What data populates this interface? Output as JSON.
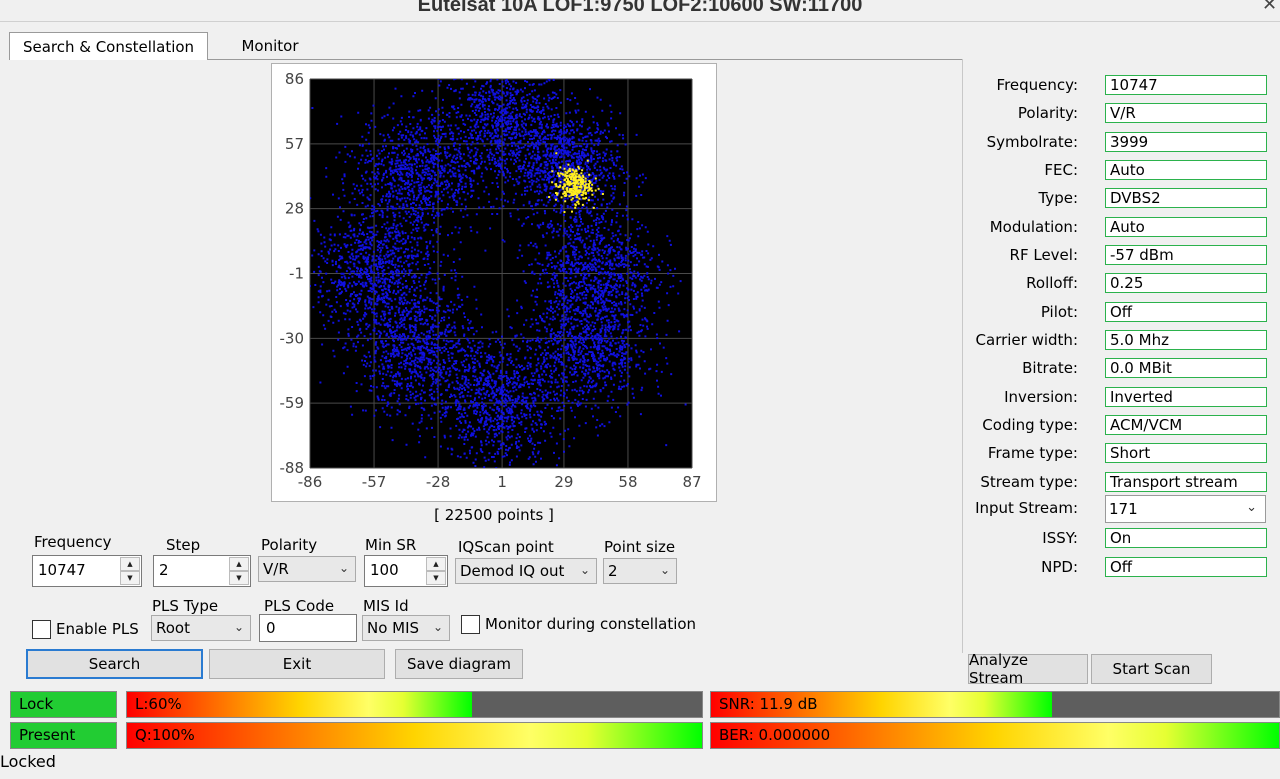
{
  "window": {
    "title": "Eutelsat 10A LOF1:9750 LOF2:10600 SW:11700",
    "close_glyph": "✕"
  },
  "tabs": [
    {
      "label": "Search & Constellation",
      "active": true
    },
    {
      "label": "Monitor",
      "active": false
    }
  ],
  "plot": {
    "x_ticks": [
      "-86",
      "-57",
      "-28",
      "1",
      "29",
      "58",
      "87"
    ],
    "y_ticks": [
      "86",
      "57",
      "28",
      "-1",
      "-30",
      "-59",
      "-88"
    ],
    "points_label": "[ 22500 points ]",
    "colors": {
      "background": "#000000",
      "points": "#1010e0",
      "highlight": "#ffee22",
      "grid": "#4a4a4a"
    }
  },
  "chart_data": {
    "type": "scatter",
    "x_ticks": [
      -86,
      -57,
      -28,
      1,
      29,
      58,
      87
    ],
    "y_ticks": [
      86,
      57,
      28,
      -1,
      -30,
      -59,
      -88
    ],
    "xlim": [
      -86,
      87
    ],
    "ylim": [
      -88,
      86
    ],
    "grid": true,
    "total_points": 22500,
    "clusters": [
      {
        "cx": 1,
        "cy": 66,
        "spread": 14,
        "color": "blue"
      },
      {
        "cx": 30,
        "cy": 47,
        "spread": 12,
        "color": "blue"
      },
      {
        "cx": 42,
        "cy": 2,
        "spread": 14,
        "color": "blue"
      },
      {
        "cx": 39,
        "cy": -35,
        "spread": 14,
        "color": "blue"
      },
      {
        "cx": -1,
        "cy": -58,
        "spread": 14,
        "color": "blue"
      },
      {
        "cx": -38,
        "cy": -36,
        "spread": 14,
        "color": "blue"
      },
      {
        "cx": -57,
        "cy": 1,
        "spread": 14,
        "color": "blue"
      },
      {
        "cx": -38,
        "cy": 44,
        "spread": 14,
        "color": "blue"
      },
      {
        "cx": 33,
        "cy": 39,
        "spread": 4,
        "color": "yellow"
      }
    ]
  },
  "controls": {
    "frequency": {
      "label": "Frequency",
      "value": "10747"
    },
    "step": {
      "label": "Step",
      "value": "2"
    },
    "polarity": {
      "label": "Polarity",
      "value": "V/R"
    },
    "min_sr": {
      "label": "Min SR",
      "value": "100"
    },
    "iqscan": {
      "label": "IQScan point",
      "value": "Demod IQ out"
    },
    "point_size": {
      "label": "Point size",
      "value": "2"
    },
    "enable_pls": {
      "label": "Enable PLS",
      "checked": false
    },
    "pls_type": {
      "label": "PLS Type",
      "value": "Root"
    },
    "pls_code": {
      "label": "PLS Code",
      "value": "0"
    },
    "mis_id": {
      "label": "MIS Id",
      "value": "No MIS"
    },
    "monitor_during": {
      "label": "Monitor during constellation",
      "checked": false
    }
  },
  "buttons": {
    "search": "Search",
    "exit": "Exit",
    "save_diagram": "Save diagram",
    "analyze_stream": "Analyze Stream",
    "start_scan": "Start Scan"
  },
  "info": [
    {
      "key": "Frequency:",
      "value": "10747"
    },
    {
      "key": "Polarity:",
      "value": "V/R"
    },
    {
      "key": "Symbolrate:",
      "value": "3999"
    },
    {
      "key": "FEC:",
      "value": "Auto"
    },
    {
      "key": "Type:",
      "value": "DVBS2"
    },
    {
      "key": "Modulation:",
      "value": "Auto"
    },
    {
      "key": "RF Level:",
      "value": "-57 dBm"
    },
    {
      "key": "Rolloff:",
      "value": "0.25"
    },
    {
      "key": "Pilot:",
      "value": "Off"
    },
    {
      "key": "Carrier width:",
      "value": "5.0 Mhz"
    },
    {
      "key": "Bitrate:",
      "value": "0.0 MBit"
    },
    {
      "key": "Inversion:",
      "value": "Inverted"
    },
    {
      "key": "Coding type:",
      "value": "ACM/VCM"
    },
    {
      "key": "Frame type:",
      "value": "Short"
    },
    {
      "key": "Stream type:",
      "value": "Transport stream"
    }
  ],
  "input_stream": {
    "key": "Input Stream:",
    "value": "171"
  },
  "info_tail": [
    {
      "key": "ISSY:",
      "value": "On"
    },
    {
      "key": "NPD:",
      "value": "Off"
    }
  ],
  "status": {
    "lock": "Lock",
    "present": "Present",
    "level_text": "L:60%",
    "level_fraction": 0.6,
    "quality_text": "Q:100%",
    "quality_fraction": 1.0,
    "snr_text": "SNR: 11.9 dB",
    "snr_fraction": 0.6,
    "ber_text": "BER: 0.000000",
    "ber_fraction": 1.0,
    "status_line": "Locked",
    "lock_color": "#22cc33"
  }
}
